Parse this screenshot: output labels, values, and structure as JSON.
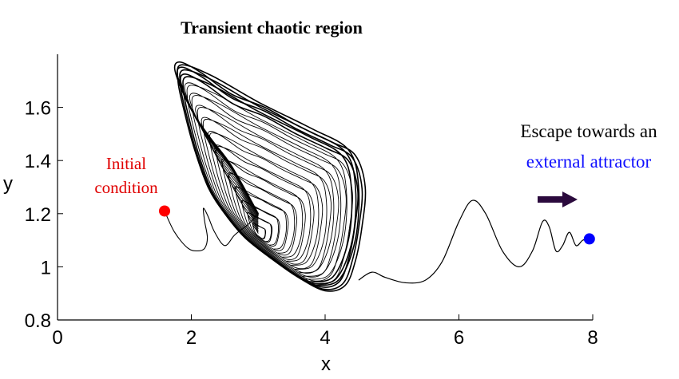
{
  "chart_data": {
    "type": "line",
    "title": "Transient chaotic region",
    "xlabel": "x",
    "ylabel": "y",
    "xlim": [
      0,
      8
    ],
    "ylim": [
      0.8,
      1.8
    ],
    "xticks": [
      0,
      2,
      4,
      6,
      8
    ],
    "yticks": [
      0.8,
      1,
      1.2,
      1.4,
      1.6
    ],
    "xtick_labels": [
      "0",
      "2",
      "4",
      "6",
      "8"
    ],
    "ytick_labels": [
      "0.8",
      "1",
      "1.2",
      "1.4",
      "1.6"
    ],
    "grid": false,
    "initial_point": {
      "x": 1.6,
      "y": 1.21
    },
    "final_point": {
      "x": 7.95,
      "y": 1.105
    },
    "transient_entry": [
      [
        1.6,
        1.21
      ],
      [
        1.75,
        1.13
      ],
      [
        1.95,
        1.07
      ],
      [
        2.1,
        1.06
      ],
      [
        2.2,
        1.07
      ],
      [
        2.24,
        1.11
      ],
      [
        2.2,
        1.17
      ],
      [
        2.18,
        1.22
      ],
      [
        2.25,
        1.19
      ],
      [
        2.35,
        1.13
      ],
      [
        2.5,
        1.08
      ],
      [
        2.65,
        1.12
      ],
      [
        2.85,
        1.16
      ],
      [
        3.0,
        1.2
      ]
    ],
    "chaotic_envelope": [
      [
        3.0,
        1.2
      ],
      [
        2.6,
        1.38
      ],
      [
        2.3,
        1.48
      ],
      [
        2.05,
        1.57
      ],
      [
        1.85,
        1.67
      ],
      [
        1.75,
        1.75
      ],
      [
        1.85,
        1.77
      ],
      [
        2.15,
        1.73
      ],
      [
        2.6,
        1.65
      ],
      [
        3.1,
        1.6
      ],
      [
        3.6,
        1.53
      ],
      [
        4.1,
        1.47
      ],
      [
        4.45,
        1.42
      ],
      [
        4.6,
        1.3
      ],
      [
        4.55,
        1.15
      ],
      [
        4.45,
        1.02
      ],
      [
        4.3,
        0.93
      ],
      [
        4.0,
        0.91
      ],
      [
        3.6,
        0.96
      ],
      [
        3.2,
        1.03
      ],
      [
        2.8,
        1.11
      ],
      [
        2.5,
        1.2
      ],
      [
        2.25,
        1.3
      ],
      [
        2.05,
        1.44
      ],
      [
        1.9,
        1.58
      ],
      [
        1.8,
        1.7
      ],
      [
        1.85,
        1.76
      ],
      [
        2.3,
        1.72
      ],
      [
        3.0,
        1.62
      ],
      [
        3.8,
        1.52
      ],
      [
        4.35,
        1.44
      ],
      [
        4.5,
        1.3
      ],
      [
        4.45,
        1.1
      ],
      [
        4.2,
        0.95
      ],
      [
        3.8,
        0.93
      ]
    ],
    "escape_path": [
      [
        4.5,
        0.95
      ],
      [
        4.7,
        0.98
      ],
      [
        4.9,
        0.96
      ],
      [
        5.2,
        0.94
      ],
      [
        5.5,
        0.95
      ],
      [
        5.75,
        1.02
      ],
      [
        6.0,
        1.17
      ],
      [
        6.2,
        1.25
      ],
      [
        6.4,
        1.2
      ],
      [
        6.65,
        1.06
      ],
      [
        6.9,
        1.0
      ],
      [
        7.1,
        1.06
      ],
      [
        7.25,
        1.17
      ],
      [
        7.35,
        1.15
      ],
      [
        7.45,
        1.06
      ],
      [
        7.55,
        1.08
      ],
      [
        7.65,
        1.13
      ],
      [
        7.75,
        1.08
      ],
      [
        7.85,
        1.1
      ],
      [
        7.95,
        1.105
      ]
    ],
    "annotations": {
      "initial": [
        "Initial",
        "condition"
      ],
      "escape": [
        "Escape towards an",
        "external attractor"
      ]
    },
    "colors": {
      "curve": "#000000",
      "initial_point": "#ff0000",
      "initial_label": "#e00000",
      "final_point": "#0000ff",
      "escape_highlight": "#1010ff",
      "arrow": "#2b0a3d"
    }
  }
}
